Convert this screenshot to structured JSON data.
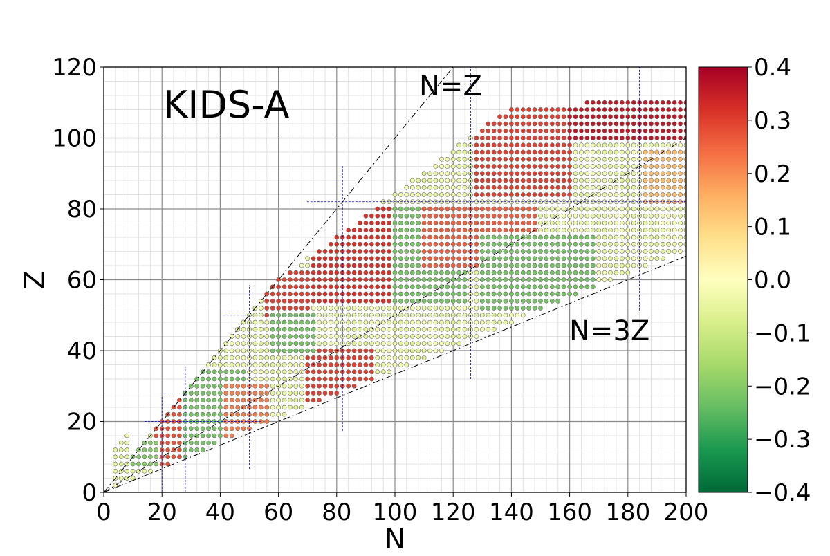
{
  "chart_data": {
    "type": "scatter",
    "title": "KIDS-A",
    "xlabel": "N",
    "ylabel": "Z",
    "xlim": [
      0,
      200
    ],
    "ylim": [
      0,
      120
    ],
    "x_ticks": [
      "0",
      "20",
      "40",
      "60",
      "80",
      "100",
      "120",
      "140",
      "160",
      "180",
      "200"
    ],
    "y_ticks": [
      "0",
      "20",
      "40",
      "60",
      "80",
      "100",
      "120"
    ],
    "x_tick_values": [
      0,
      20,
      40,
      60,
      80,
      100,
      120,
      140,
      160,
      180,
      200
    ],
    "y_tick_values": [
      0,
      20,
      40,
      60,
      80,
      100,
      120
    ],
    "grid": "major and minor",
    "colorbar": {
      "min": -0.4,
      "max": 0.4,
      "ticks": [
        "0.4",
        "0.3",
        "0.2",
        "0.1",
        "0.0",
        "−0.1",
        "−0.2",
        "−0.3",
        "−0.4"
      ],
      "tick_values": [
        0.4,
        0.3,
        0.2,
        0.1,
        0.0,
        -0.1,
        -0.2,
        -0.3,
        -0.4
      ],
      "colormap": "RdYlGn_r",
      "colors": [
        "#006837",
        "#1a9850",
        "#66bd63",
        "#a6d96a",
        "#d9ef8b",
        "#ffffbf",
        "#fee08b",
        "#fdae61",
        "#f46d43",
        "#d73027",
        "#a50026"
      ]
    },
    "reference_lines": [
      {
        "label": "N=Z",
        "slope": 1
      },
      {
        "label": "N=3Z",
        "slope": 0.3333
      }
    ],
    "magic_numbers": [
      8,
      20,
      28,
      50,
      82,
      126,
      184
    ],
    "deformation_regions": [
      {
        "nmin": 18,
        "nmax": 32,
        "zmin": 8,
        "zmax": 30,
        "value": 0.28
      },
      {
        "nmin": 10,
        "nmax": 18,
        "zmin": 8,
        "zmax": 14,
        "value": -0.2
      },
      {
        "nmin": 28,
        "nmax": 48,
        "zmin": 10,
        "zmax": 34,
        "value": -0.22
      },
      {
        "nmin": 42,
        "nmax": 56,
        "zmin": 14,
        "zmax": 30,
        "value": 0.22
      },
      {
        "nmin": 70,
        "nmax": 92,
        "zmin": 26,
        "zmax": 40,
        "value": 0.3
      },
      {
        "nmin": 56,
        "nmax": 70,
        "zmin": 50,
        "zmax": 62,
        "value": 0.3
      },
      {
        "nmin": 58,
        "nmax": 72,
        "zmin": 40,
        "zmax": 50,
        "value": -0.22
      },
      {
        "nmin": 72,
        "nmax": 118,
        "zmin": 54,
        "zmax": 80,
        "value": 0.32
      },
      {
        "nmin": 100,
        "nmax": 124,
        "zmin": 54,
        "zmax": 80,
        "value": -0.22
      },
      {
        "nmin": 110,
        "nmax": 148,
        "zmin": 64,
        "zmax": 80,
        "value": 0.26
      },
      {
        "nmin": 130,
        "nmax": 168,
        "zmin": 52,
        "zmax": 72,
        "value": -0.22
      },
      {
        "nmin": 128,
        "nmax": 160,
        "zmin": 84,
        "zmax": 110,
        "value": 0.3
      },
      {
        "nmin": 160,
        "nmax": 200,
        "zmin": 100,
        "zmax": 112,
        "value": 0.36
      },
      {
        "nmin": 186,
        "nmax": 200,
        "zmin": 82,
        "zmax": 96,
        "value": 0.14
      }
    ]
  }
}
